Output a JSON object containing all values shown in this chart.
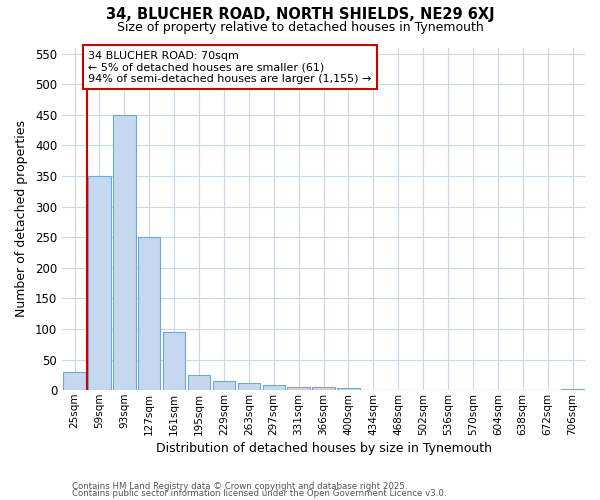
{
  "title1": "34, BLUCHER ROAD, NORTH SHIELDS, NE29 6XJ",
  "title2": "Size of property relative to detached houses in Tynemouth",
  "xlabel": "Distribution of detached houses by size in Tynemouth",
  "ylabel": "Number of detached properties",
  "categories": [
    "25sqm",
    "59sqm",
    "93sqm",
    "127sqm",
    "161sqm",
    "195sqm",
    "229sqm",
    "263sqm",
    "297sqm",
    "331sqm",
    "366sqm",
    "400sqm",
    "434sqm",
    "468sqm",
    "502sqm",
    "536sqm",
    "570sqm",
    "604sqm",
    "638sqm",
    "672sqm",
    "706sqm"
  ],
  "values": [
    30,
    350,
    450,
    250,
    95,
    25,
    15,
    12,
    8,
    5,
    5,
    4,
    0,
    0,
    0,
    0,
    0,
    0,
    0,
    0,
    2
  ],
  "bar_color": "#c5d8f0",
  "bar_edge_color": "#6aaad4",
  "vline_x": 1,
  "vline_color": "#cc0000",
  "annotation_text": "34 BLUCHER ROAD: 70sqm\n← 5% of detached houses are smaller (61)\n94% of semi-detached houses are larger (1,155) →",
  "annotation_box_color": "#ffffff",
  "annotation_box_edge": "#cc0000",
  "ylim": [
    0,
    560
  ],
  "yticks": [
    0,
    50,
    100,
    150,
    200,
    250,
    300,
    350,
    400,
    450,
    500,
    550
  ],
  "footer1": "Contains HM Land Registry data © Crown copyright and database right 2025.",
  "footer2": "Contains public sector information licensed under the Open Government Licence v3.0.",
  "bg_color": "#ffffff",
  "plot_bg_color": "#ffffff",
  "grid_color": "#c8d8e8"
}
